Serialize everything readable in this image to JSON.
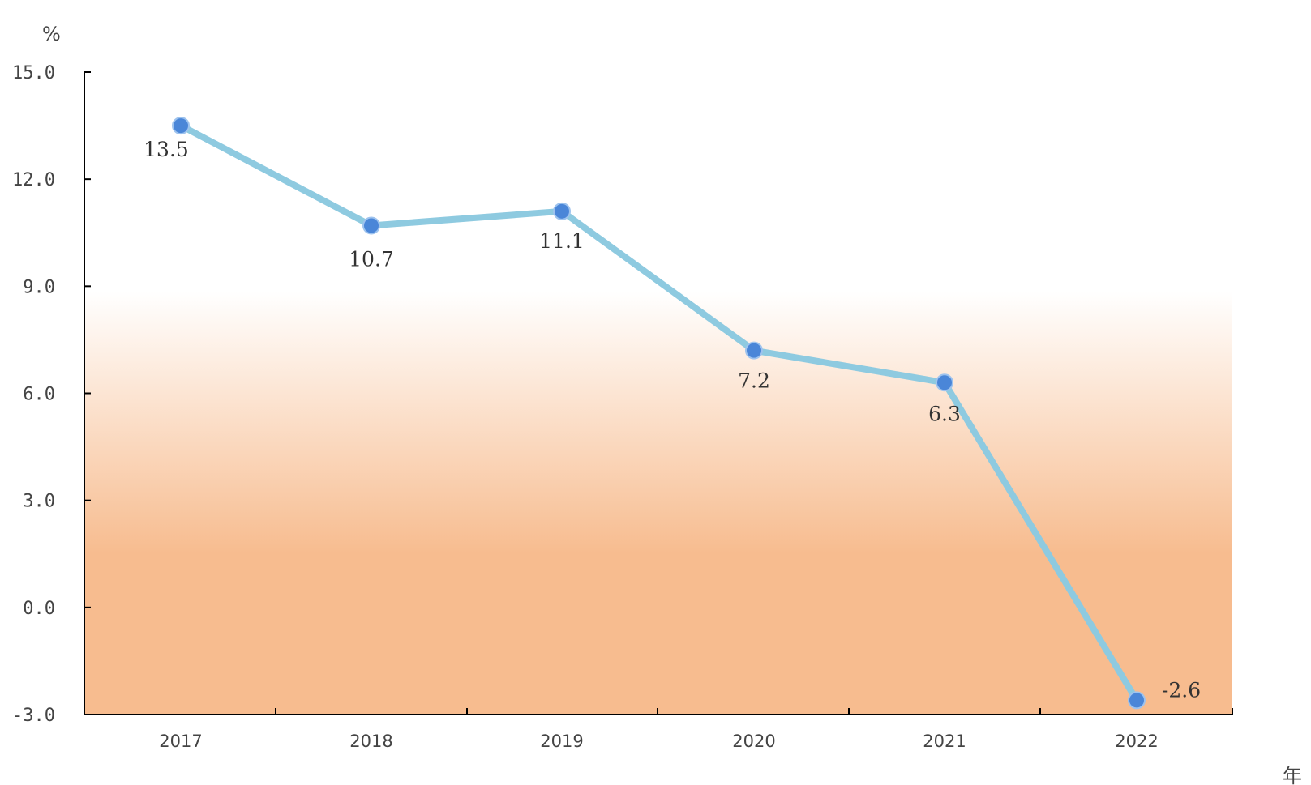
{
  "chart_data": {
    "type": "line",
    "categories": [
      "2017",
      "2018",
      "2019",
      "2020",
      "2021",
      "2022"
    ],
    "series": [
      {
        "values": [
          13.5,
          10.7,
          11.1,
          7.2,
          6.3,
          -2.6
        ]
      }
    ],
    "data_labels": [
      "13.5",
      "10.7",
      "11.1",
      "7.2",
      "6.3",
      "-2.6"
    ],
    "y_tick_labels": [
      "15.0",
      "12.0",
      "9.0",
      "6.0",
      "3.0",
      "0.0",
      "-3.0"
    ],
    "y_ticks": [
      15,
      12,
      9,
      6,
      3,
      0,
      -3
    ],
    "ylim": [
      -3,
      15
    ],
    "ylabel": "%",
    "xlabel": "年",
    "grid": false,
    "legend": "none",
    "colors": {
      "line": "#8ecae0",
      "marker": "#4a86d8",
      "background_gradient_top": "#ffffff",
      "background_gradient_bottom": "#f7bc8f",
      "axis": "#000000"
    }
  }
}
